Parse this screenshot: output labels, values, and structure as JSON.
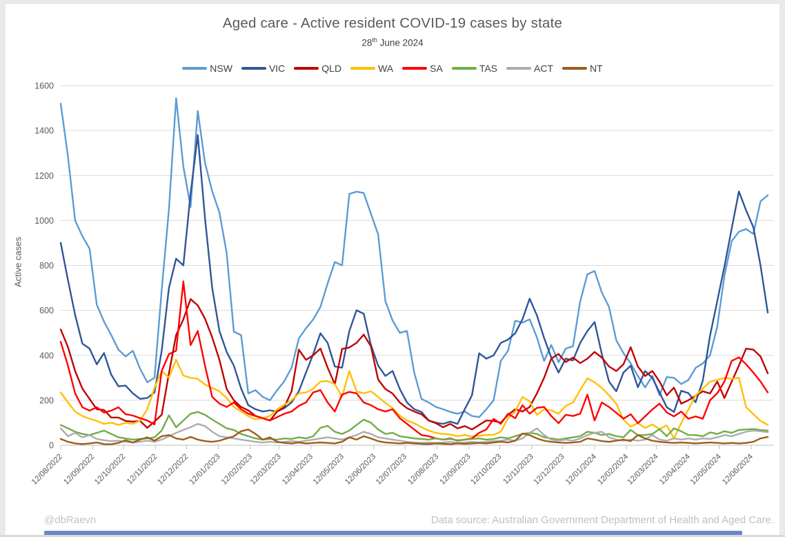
{
  "footer": {
    "handle": "@dbRaevn",
    "source_note": "Data source: Australian Government Department of Health and Aged Care."
  },
  "chart_data": {
    "type": "line",
    "title": "Aged care - Active resident COVID-19 cases by state",
    "subtitle_day": "28",
    "subtitle_ordinal": "th",
    "subtitle_rest": " June 2024",
    "ylabel": "Active cases",
    "ylim": [
      0,
      1600
    ],
    "ytick_step": 200,
    "grid": true,
    "legend_position": "top",
    "x_start_label": "12/08/2022",
    "x_end_label": "28/06/2024",
    "x_frequency": "weekly",
    "n_points": 99,
    "x_tick_labels": [
      "12/08/2022",
      "12/09/2022",
      "12/10/2022",
      "12/11/2022",
      "12/12/2022",
      "12/01/2023",
      "12/02/2023",
      "12/03/2023",
      "12/04/2023",
      "12/05/2023",
      "12/06/2023",
      "12/07/2023",
      "12/08/2023",
      "12/09/2023",
      "12/10/2023",
      "12/11/2023",
      "12/12/2023",
      "12/01/2024",
      "12/02/2024",
      "12/03/2024",
      "12/04/2024",
      "12/05/2024",
      "12/06/2024"
    ],
    "tick_week_offsets": [
      0,
      4.43,
      8.71,
      13.14,
      17.43,
      21.86,
      26.29,
      30.29,
      34.71,
      39,
      43.43,
      47.71,
      52.14,
      56.57,
      60.86,
      65.29,
      69.57,
      74,
      78.43,
      82.57,
      87,
      91.29,
      95.71
    ],
    "series": [
      {
        "name": "NSW",
        "color": "#5B9BD5",
        "values": [
          1520,
          1285,
          1000,
          930,
          875,
          625,
          550,
          490,
          425,
          395,
          420,
          340,
          280,
          300,
          690,
          1050,
          1544,
          1240,
          1060,
          1487,
          1256,
          1130,
          1035,
          855,
          505,
          490,
          230,
          245,
          215,
          200,
          245,
          285,
          345,
          475,
          520,
          560,
          615,
          720,
          815,
          800,
          1118,
          1128,
          1122,
          1030,
          938,
          640,
          555,
          500,
          508,
          323,
          206,
          190,
          170,
          160,
          148,
          140,
          150,
          130,
          125,
          160,
          200,
          375,
          420,
          554,
          545,
          560,
          480,
          375,
          446,
          369,
          430,
          440,
          640,
          760,
          775,
          680,
          615,
          467,
          410,
          364,
          308,
          257,
          308,
          222,
          303,
          300,
          272,
          290,
          344,
          364,
          400,
          528,
          754,
          908,
          950,
          962,
          940,
          1085,
          1112
        ]
      },
      {
        "name": "VIC",
        "color": "#2F5597",
        "values": [
          900,
          735,
          580,
          452,
          430,
          360,
          410,
          314,
          262,
          265,
          231,
          206,
          210,
          235,
          420,
          700,
          830,
          800,
          1120,
          1380,
          1010,
          700,
          508,
          415,
          354,
          252,
          178,
          160,
          150,
          155,
          150,
          165,
          190,
          240,
          323,
          406,
          498,
          455,
          350,
          345,
          508,
          600,
          585,
          446,
          354,
          308,
          330,
          250,
          190,
          160,
          148,
          110,
          100,
          95,
          105,
          95,
          160,
          222,
          409,
          385,
          400,
          455,
          470,
          498,
          560,
          652,
          578,
          477,
          390,
          323,
          385,
          377,
          455,
          508,
          548,
          406,
          283,
          240,
          323,
          354,
          258,
          330,
          300,
          235,
          169,
          148,
          242,
          232,
          191,
          288,
          487,
          641,
          795,
          964,
          1129,
          1045,
          970,
          800,
          590
        ]
      },
      {
        "name": "QLD",
        "color": "#C00000",
        "values": [
          515,
          437,
          330,
          252,
          206,
          160,
          157,
          123,
          123,
          108,
          105,
          108,
          77,
          105,
          135,
          320,
          490,
          560,
          650,
          622,
          563,
          480,
          380,
          250,
          200,
          170,
          155,
          130,
          120,
          110,
          150,
          170,
          240,
          425,
          380,
          400,
          430,
          345,
          271,
          428,
          435,
          455,
          492,
          440,
          292,
          250,
          230,
          190,
          165,
          150,
          138,
          110,
          98,
          80,
          95,
          75,
          85,
          70,
          90,
          110,
          108,
          100,
          135,
          160,
          150,
          170,
          230,
          300,
          385,
          406,
          370,
          390,
          365,
          385,
          415,
          390,
          350,
          330,
          360,
          436,
          350,
          308,
          330,
          283,
          222,
          256,
          185,
          200,
          220,
          240,
          230,
          283,
          210,
          283,
          354,
          430,
          425,
          395,
          320
        ]
      },
      {
        "name": "WA",
        "color": "#FFC000",
        "values": [
          235,
          190,
          150,
          130,
          118,
          108,
          95,
          100,
          90,
          100,
          95,
          110,
          160,
          255,
          330,
          300,
          380,
          310,
          300,
          295,
          270,
          255,
          240,
          210,
          170,
          150,
          130,
          115,
          120,
          130,
          160,
          180,
          200,
          230,
          235,
          252,
          283,
          286,
          271,
          215,
          330,
          240,
          231,
          240,
          215,
          188,
          165,
          132,
          110,
          98,
          80,
          65,
          55,
          50,
          48,
          40,
          45,
          38,
          42,
          45,
          46,
          60,
          120,
          150,
          215,
          195,
          135,
          160,
          155,
          140,
          175,
          190,
          245,
          298,
          280,
          255,
          222,
          185,
          114,
          83,
          98,
          77,
          92,
          72,
          88,
          31,
          98,
          159,
          221,
          252,
          283,
          290,
          300,
          295,
          300,
          169,
          138,
          108,
          90
        ]
      },
      {
        "name": "SA",
        "color": "#FF0000",
        "values": [
          460,
          354,
          231,
          169,
          154,
          169,
          145,
          154,
          169,
          138,
          132,
          120,
          110,
          92,
          330,
          405,
          420,
          729,
          445,
          508,
          354,
          215,
          185,
          170,
          190,
          160,
          140,
          130,
          120,
          110,
          125,
          140,
          150,
          175,
          190,
          235,
          245,
          190,
          150,
          225,
          237,
          231,
          190,
          178,
          160,
          150,
          160,
          120,
          95,
          70,
          45,
          40,
          30,
          25,
          30,
          20,
          25,
          30,
          55,
          70,
          117,
          95,
          140,
          120,
          178,
          140,
          166,
          170,
          130,
          98,
          135,
          130,
          140,
          225,
          110,
          190,
          170,
          144,
          118,
          138,
          98,
          128,
          159,
          185,
          146,
          128,
          150,
          118,
          128,
          118,
          200,
          231,
          283,
          375,
          391,
          360,
          323,
          283,
          235
        ]
      },
      {
        "name": "TAS",
        "color": "#70AD47",
        "values": [
          90,
          75,
          60,
          50,
          45,
          55,
          65,
          50,
          35,
          30,
          25,
          28,
          30,
          35,
          65,
          133,
          80,
          110,
          140,
          148,
          135,
          114,
          95,
          75,
          68,
          50,
          40,
          30,
          25,
          28,
          25,
          30,
          28,
          35,
          30,
          40,
          77,
          86,
          60,
          50,
          65,
          90,
          114,
          100,
          70,
          50,
          55,
          40,
          35,
          30,
          28,
          25,
          30,
          25,
          28,
          22,
          25,
          28,
          30,
          25,
          28,
          35,
          30,
          40,
          50,
          55,
          50,
          35,
          30,
          25,
          30,
          35,
          40,
          60,
          55,
          45,
          50,
          40,
          35,
          68,
          45,
          45,
          50,
          72,
          40,
          75,
          62,
          45,
          45,
          40,
          57,
          50,
          62,
          55,
          68,
          70,
          72,
          68,
          65
        ]
      },
      {
        "name": "ACT",
        "color": "#ACACAC",
        "values": [
          75,
          40,
          55,
          35,
          45,
          28,
          22,
          18,
          20,
          15,
          12,
          15,
          20,
          15,
          25,
          40,
          55,
          68,
          80,
          95,
          85,
          60,
          40,
          35,
          30,
          25,
          20,
          15,
          12,
          15,
          12,
          15,
          18,
          15,
          20,
          25,
          30,
          35,
          30,
          25,
          35,
          45,
          60,
          50,
          35,
          30,
          25,
          20,
          15,
          12,
          10,
          12,
          10,
          12,
          15,
          10,
          12,
          15,
          12,
          15,
          18,
          20,
          25,
          20,
          30,
          55,
          75,
          45,
          25,
          20,
          25,
          20,
          30,
          45,
          55,
          60,
          35,
          25,
          20,
          25,
          20,
          25,
          45,
          25,
          20,
          30,
          25,
          30,
          25,
          30,
          28,
          35,
          45,
          40,
          50,
          60,
          65,
          62,
          58
        ]
      },
      {
        "name": "NT",
        "color": "#9E5B1C",
        "values": [
          28,
          15,
          8,
          5,
          8,
          12,
          5,
          4,
          10,
          22,
          12,
          25,
          35,
          20,
          40,
          45,
          30,
          25,
          37,
          25,
          18,
          15,
          20,
          30,
          40,
          62,
          70,
          50,
          25,
          35,
          15,
          10,
          8,
          12,
          8,
          10,
          12,
          10,
          8,
          15,
          35,
          25,
          40,
          30,
          18,
          12,
          10,
          8,
          10,
          8,
          6,
          5,
          8,
          6,
          5,
          8,
          6,
          8,
          10,
          8,
          12,
          15,
          12,
          20,
          52,
          45,
          30,
          20,
          15,
          12,
          10,
          12,
          15,
          30,
          25,
          18,
          15,
          20,
          25,
          18,
          45,
          30,
          20,
          15,
          12,
          10,
          12,
          10,
          8,
          10,
          12,
          10,
          8,
          10,
          8,
          10,
          15,
          30,
          37
        ]
      }
    ]
  }
}
